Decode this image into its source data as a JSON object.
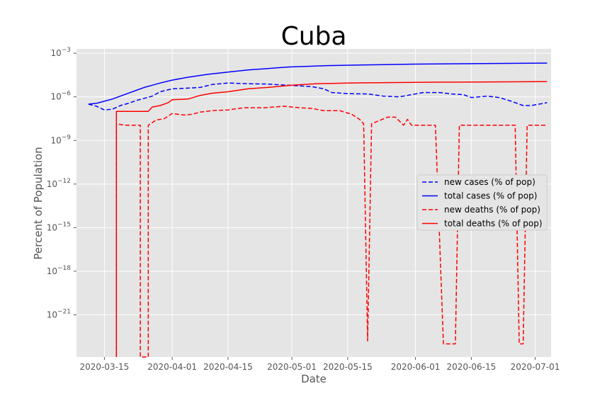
{
  "chart_data": {
    "type": "line",
    "title": "Cuba",
    "xlabel": "Date",
    "ylabel": "Percent of Population",
    "x_ticks": [
      "2020-03-15",
      "2020-04-01",
      "2020-04-15",
      "2020-05-01",
      "2020-05-15",
      "2020-06-01",
      "2020-06-15",
      "2020-07-01"
    ],
    "y_ticks": [
      {
        "exp": -3,
        "label": "10",
        "sup": "−3"
      },
      {
        "exp": -6,
        "label": "10",
        "sup": "−6"
      },
      {
        "exp": -9,
        "label": "10",
        "sup": "−9"
      },
      {
        "exp": -12,
        "label": "10",
        "sup": "−12"
      },
      {
        "exp": -15,
        "label": "10",
        "sup": "−15"
      },
      {
        "exp": -18,
        "label": "10",
        "sup": "−18"
      },
      {
        "exp": -21,
        "label": "10",
        "sup": "−21"
      }
    ],
    "xlim": [
      "2020-03-08",
      "2020-07-05"
    ],
    "ylim_log10": [
      -23.9,
      -2.7
    ],
    "y_scale": "log",
    "grid": true,
    "legend_position": "center-right",
    "series": [
      {
        "name": "new cases (% of pop)",
        "color": "#0000ff",
        "style": "dashed",
        "points": [
          [
            "2020-03-11",
            -6.5
          ],
          [
            "2020-03-13",
            -6.65
          ],
          [
            "2020-03-15",
            -6.9
          ],
          [
            "2020-03-17",
            -6.85
          ],
          [
            "2020-03-19",
            -6.6
          ],
          [
            "2020-03-21",
            -6.45
          ],
          [
            "2020-03-23",
            -6.25
          ],
          [
            "2020-03-25",
            -6.1
          ],
          [
            "2020-03-27",
            -5.95
          ],
          [
            "2020-03-29",
            -5.65
          ],
          [
            "2020-04-01",
            -5.45
          ],
          [
            "2020-04-05",
            -5.4
          ],
          [
            "2020-04-08",
            -5.35
          ],
          [
            "2020-04-11",
            -5.15
          ],
          [
            "2020-04-15",
            -5.05
          ],
          [
            "2020-04-20",
            -5.1
          ],
          [
            "2020-04-25",
            -5.12
          ],
          [
            "2020-04-30",
            -5.2
          ],
          [
            "2020-05-03",
            -5.25
          ],
          [
            "2020-05-06",
            -5.3
          ],
          [
            "2020-05-09",
            -5.45
          ],
          [
            "2020-05-11",
            -5.7
          ],
          [
            "2020-05-15",
            -5.78
          ],
          [
            "2020-05-20",
            -5.8
          ],
          [
            "2020-05-24",
            -5.95
          ],
          [
            "2020-05-28",
            -6.0
          ],
          [
            "2020-06-01",
            -5.8
          ],
          [
            "2020-06-03",
            -5.7
          ],
          [
            "2020-06-07",
            -5.7
          ],
          [
            "2020-06-10",
            -5.8
          ],
          [
            "2020-06-13",
            -5.85
          ],
          [
            "2020-06-15",
            -6.05
          ],
          [
            "2020-06-19",
            -5.95
          ],
          [
            "2020-06-22",
            -6.05
          ],
          [
            "2020-06-25",
            -6.3
          ],
          [
            "2020-06-28",
            -6.6
          ],
          [
            "2020-06-30",
            -6.6
          ],
          [
            "2020-07-02",
            -6.5
          ],
          [
            "2020-07-04",
            -6.4
          ]
        ]
      },
      {
        "name": "total cases (% of pop)",
        "color": "#0000ff",
        "style": "solid",
        "points": [
          [
            "2020-03-11",
            -6.5
          ],
          [
            "2020-03-13",
            -6.45
          ],
          [
            "2020-03-15",
            -6.3
          ],
          [
            "2020-03-17",
            -6.15
          ],
          [
            "2020-03-19",
            -5.95
          ],
          [
            "2020-03-21",
            -5.75
          ],
          [
            "2020-03-23",
            -5.55
          ],
          [
            "2020-03-25",
            -5.35
          ],
          [
            "2020-03-27",
            -5.2
          ],
          [
            "2020-03-29",
            -5.05
          ],
          [
            "2020-04-01",
            -4.85
          ],
          [
            "2020-04-05",
            -4.65
          ],
          [
            "2020-04-10",
            -4.45
          ],
          [
            "2020-04-15",
            -4.3
          ],
          [
            "2020-04-20",
            -4.15
          ],
          [
            "2020-04-25",
            -4.05
          ],
          [
            "2020-04-30",
            -3.95
          ],
          [
            "2020-05-10",
            -3.85
          ],
          [
            "2020-05-20",
            -3.8
          ],
          [
            "2020-06-01",
            -3.75
          ],
          [
            "2020-06-15",
            -3.72
          ],
          [
            "2020-07-04",
            -3.68
          ]
        ]
      },
      {
        "name": "new deaths (% of pop)",
        "color": "#ff0000",
        "style": "dashed",
        "points": [
          [
            "2020-03-18",
            -23.9
          ],
          [
            "2020-03-18",
            -7.85
          ],
          [
            "2020-03-20",
            -7.95
          ],
          [
            "2020-03-24",
            -7.95
          ],
          [
            "2020-03-24",
            -23.9
          ],
          [
            "2020-03-26",
            -23.9
          ],
          [
            "2020-03-26",
            -7.95
          ],
          [
            "2020-03-28",
            -7.6
          ],
          [
            "2020-03-30",
            -7.5
          ],
          [
            "2020-04-01",
            -7.15
          ],
          [
            "2020-04-04",
            -7.25
          ],
          [
            "2020-04-06",
            -7.2
          ],
          [
            "2020-04-08",
            -7.05
          ],
          [
            "2020-04-11",
            -6.95
          ],
          [
            "2020-04-15",
            -6.9
          ],
          [
            "2020-04-19",
            -6.75
          ],
          [
            "2020-04-24",
            -6.75
          ],
          [
            "2020-04-29",
            -6.65
          ],
          [
            "2020-05-03",
            -6.75
          ],
          [
            "2020-05-06",
            -6.8
          ],
          [
            "2020-05-09",
            -6.95
          ],
          [
            "2020-05-13",
            -6.95
          ],
          [
            "2020-05-16",
            -7.2
          ],
          [
            "2020-05-18",
            -7.55
          ],
          [
            "2020-05-19",
            -7.85
          ],
          [
            "2020-05-20",
            -22.8
          ],
          [
            "2020-05-21",
            -7.85
          ],
          [
            "2020-05-25",
            -7.4
          ],
          [
            "2020-05-27",
            -7.4
          ],
          [
            "2020-05-29",
            -7.95
          ],
          [
            "2020-05-30",
            -7.55
          ],
          [
            "2020-05-31",
            -7.95
          ],
          [
            "2020-06-06",
            -7.95
          ],
          [
            "2020-06-08",
            -23.0
          ],
          [
            "2020-06-11",
            -23.0
          ],
          [
            "2020-06-12",
            -7.95
          ],
          [
            "2020-06-26",
            -7.95
          ],
          [
            "2020-06-27",
            -23.0
          ],
          [
            "2020-06-28",
            -23.0
          ],
          [
            "2020-06-29",
            -7.95
          ],
          [
            "2020-07-04",
            -7.95
          ]
        ]
      },
      {
        "name": "total deaths (% of pop)",
        "color": "#ff0000",
        "style": "solid",
        "points": [
          [
            "2020-03-18",
            -23.9
          ],
          [
            "2020-03-18",
            -7.0
          ],
          [
            "2020-03-26",
            -7.0
          ],
          [
            "2020-03-27",
            -6.7
          ],
          [
            "2020-03-29",
            -6.6
          ],
          [
            "2020-03-31",
            -6.4
          ],
          [
            "2020-04-01",
            -6.2
          ],
          [
            "2020-04-05",
            -6.15
          ],
          [
            "2020-04-08",
            -5.9
          ],
          [
            "2020-04-11",
            -5.75
          ],
          [
            "2020-04-15",
            -5.65
          ],
          [
            "2020-04-20",
            -5.45
          ],
          [
            "2020-04-25",
            -5.35
          ],
          [
            "2020-05-01",
            -5.2
          ],
          [
            "2020-05-07",
            -5.1
          ],
          [
            "2020-05-15",
            -5.05
          ],
          [
            "2020-06-01",
            -5.0
          ],
          [
            "2020-07-04",
            -4.95
          ]
        ]
      }
    ]
  }
}
